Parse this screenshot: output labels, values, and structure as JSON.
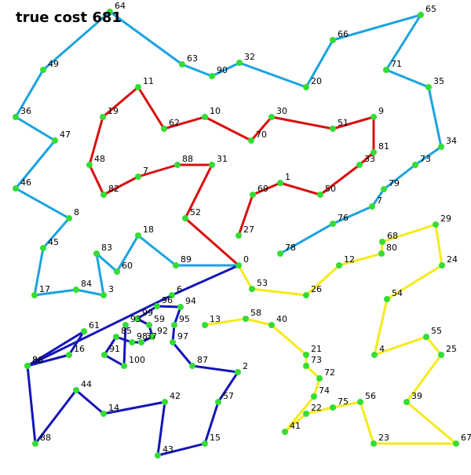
{
  "title": "true cost 681",
  "colors": {
    "route_blue_light": "#1aa3e0",
    "route_red": "#d90f0f",
    "route_blue_dark": "#1515b8",
    "route_yellow": "#f5ea1a",
    "node": "#33dd33"
  },
  "depot_label": "0",
  "routes": [
    {
      "name": "light-blue-route",
      "color_key": "route_blue_light",
      "nodes": [
        "0",
        "89",
        "18",
        "60",
        "83",
        "3",
        "84",
        "17",
        "45",
        "8",
        "46",
        "47",
        "36",
        "49",
        "64",
        "63",
        "90",
        "32",
        "20",
        "66",
        "65",
        "71",
        "35",
        "34",
        "73",
        "79",
        "7",
        "76",
        "78"
      ]
    },
    {
      "name": "red-route",
      "color_key": "route_red",
      "nodes": [
        "0",
        "52",
        "31",
        "88",
        "7",
        "82",
        "48",
        "19",
        "11",
        "62",
        "10",
        "70",
        "30",
        "51",
        "9",
        "81",
        "33",
        "50",
        "1",
        "69",
        "27"
      ]
    },
    {
      "name": "dark-blue-route",
      "color_key": "route_blue_dark",
      "nodes": [
        "0",
        "6",
        "86",
        "61",
        "16",
        "86b",
        "88b",
        "44",
        "14",
        "42",
        "43",
        "15",
        "57",
        "2",
        "87",
        "97",
        "95",
        "94",
        "96",
        "99",
        "59",
        "92",
        "37",
        "98",
        "85",
        "91",
        "100",
        "93"
      ]
    },
    {
      "name": "yellow-route",
      "color_key": "route_yellow",
      "nodes": [
        "0",
        "53",
        "26",
        "12",
        "80",
        "68",
        "29",
        "24",
        "54",
        "4",
        "55",
        "25",
        "39",
        "67",
        "23",
        "56",
        "75",
        "22",
        "41",
        "74",
        "72",
        "73",
        "21",
        "40",
        "58",
        "13"
      ]
    }
  ],
  "nodes": {
    "0": {
      "label": "0"
    },
    "89": {
      "label": "89"
    },
    "18": {
      "label": "18"
    },
    "60": {
      "label": "60"
    },
    "83": {
      "label": "83"
    },
    "3": {
      "label": "3"
    },
    "84": {
      "label": "84"
    },
    "17": {
      "label": "17"
    },
    "45": {
      "label": "45"
    },
    "8": {
      "label": "8"
    },
    "46": {
      "label": "46"
    },
    "47": {
      "label": "47"
    },
    "36": {
      "label": "36"
    },
    "49": {
      "label": "49"
    },
    "64": {
      "label": "64"
    },
    "63": {
      "label": "63"
    },
    "90": {
      "label": "90"
    },
    "32": {
      "label": "32"
    },
    "20": {
      "label": "20"
    },
    "66": {
      "label": "66"
    },
    "65": {
      "label": "65"
    },
    "71": {
      "label": "71"
    },
    "35": {
      "label": "35"
    },
    "34": {
      "label": "34"
    },
    "73": {
      "label": "73"
    },
    "79": {
      "label": "79"
    },
    "7": {
      "label": "7"
    },
    "76": {
      "label": "76"
    },
    "78": {
      "label": "78"
    },
    "52": {
      "label": "52"
    },
    "31": {
      "label": "31"
    },
    "88": {
      "label": "88"
    },
    "7r": {
      "label": "7"
    },
    "82": {
      "label": "82"
    },
    "48": {
      "label": "48"
    },
    "19": {
      "label": "19"
    },
    "11": {
      "label": "11"
    },
    "62": {
      "label": "62"
    },
    "10": {
      "label": "10"
    },
    "70": {
      "label": "70"
    },
    "30": {
      "label": "30"
    },
    "51": {
      "label": "51"
    },
    "9": {
      "label": "9"
    },
    "81": {
      "label": "81"
    },
    "33": {
      "label": "33"
    },
    "50": {
      "label": "50"
    },
    "1": {
      "label": "1"
    },
    "69": {
      "label": "69"
    },
    "27": {
      "label": "27"
    },
    "6": {
      "label": "6"
    },
    "86": {
      "label": "86"
    },
    "61": {
      "label": "61"
    },
    "16": {
      "label": "16"
    },
    "86b": {
      "label": "86"
    },
    "88b": {
      "label": "88"
    },
    "44": {
      "label": "44"
    },
    "14": {
      "label": "14"
    },
    "42": {
      "label": "42"
    },
    "43": {
      "label": "43"
    },
    "15": {
      "label": "15"
    },
    "57": {
      "label": "57"
    },
    "2": {
      "label": "2"
    },
    "87": {
      "label": "87"
    },
    "97": {
      "label": "97"
    },
    "95": {
      "label": "95"
    },
    "94": {
      "label": "94"
    },
    "96": {
      "label": "96"
    },
    "99": {
      "label": "99"
    },
    "59": {
      "label": "59"
    },
    "92": {
      "label": "92"
    },
    "37": {
      "label": "37"
    },
    "98": {
      "label": "98"
    },
    "85": {
      "label": "85"
    },
    "91": {
      "label": "91"
    },
    "100": {
      "label": "100"
    },
    "93": {
      "label": "93"
    },
    "53": {
      "label": "53"
    },
    "26": {
      "label": "26"
    },
    "12": {
      "label": "12"
    },
    "80": {
      "label": "80"
    },
    "68": {
      "label": "68"
    },
    "29": {
      "label": "29"
    },
    "24": {
      "label": "24"
    },
    "54": {
      "label": "54"
    },
    "4": {
      "label": "4"
    },
    "55": {
      "label": "55"
    },
    "25": {
      "label": "25"
    },
    "39": {
      "label": "39"
    },
    "67": {
      "label": "67"
    },
    "23": {
      "label": "23"
    },
    "56": {
      "label": "56"
    },
    "75": {
      "label": "75"
    },
    "22": {
      "label": "22"
    },
    "41": {
      "label": "41"
    },
    "74": {
      "label": "74"
    },
    "72": {
      "label": "72"
    },
    "73y": {
      "label": "73"
    },
    "21": {
      "label": "21"
    },
    "40": {
      "label": "40"
    },
    "58": {
      "label": "58"
    },
    "13": {
      "label": "13"
    }
  }
}
